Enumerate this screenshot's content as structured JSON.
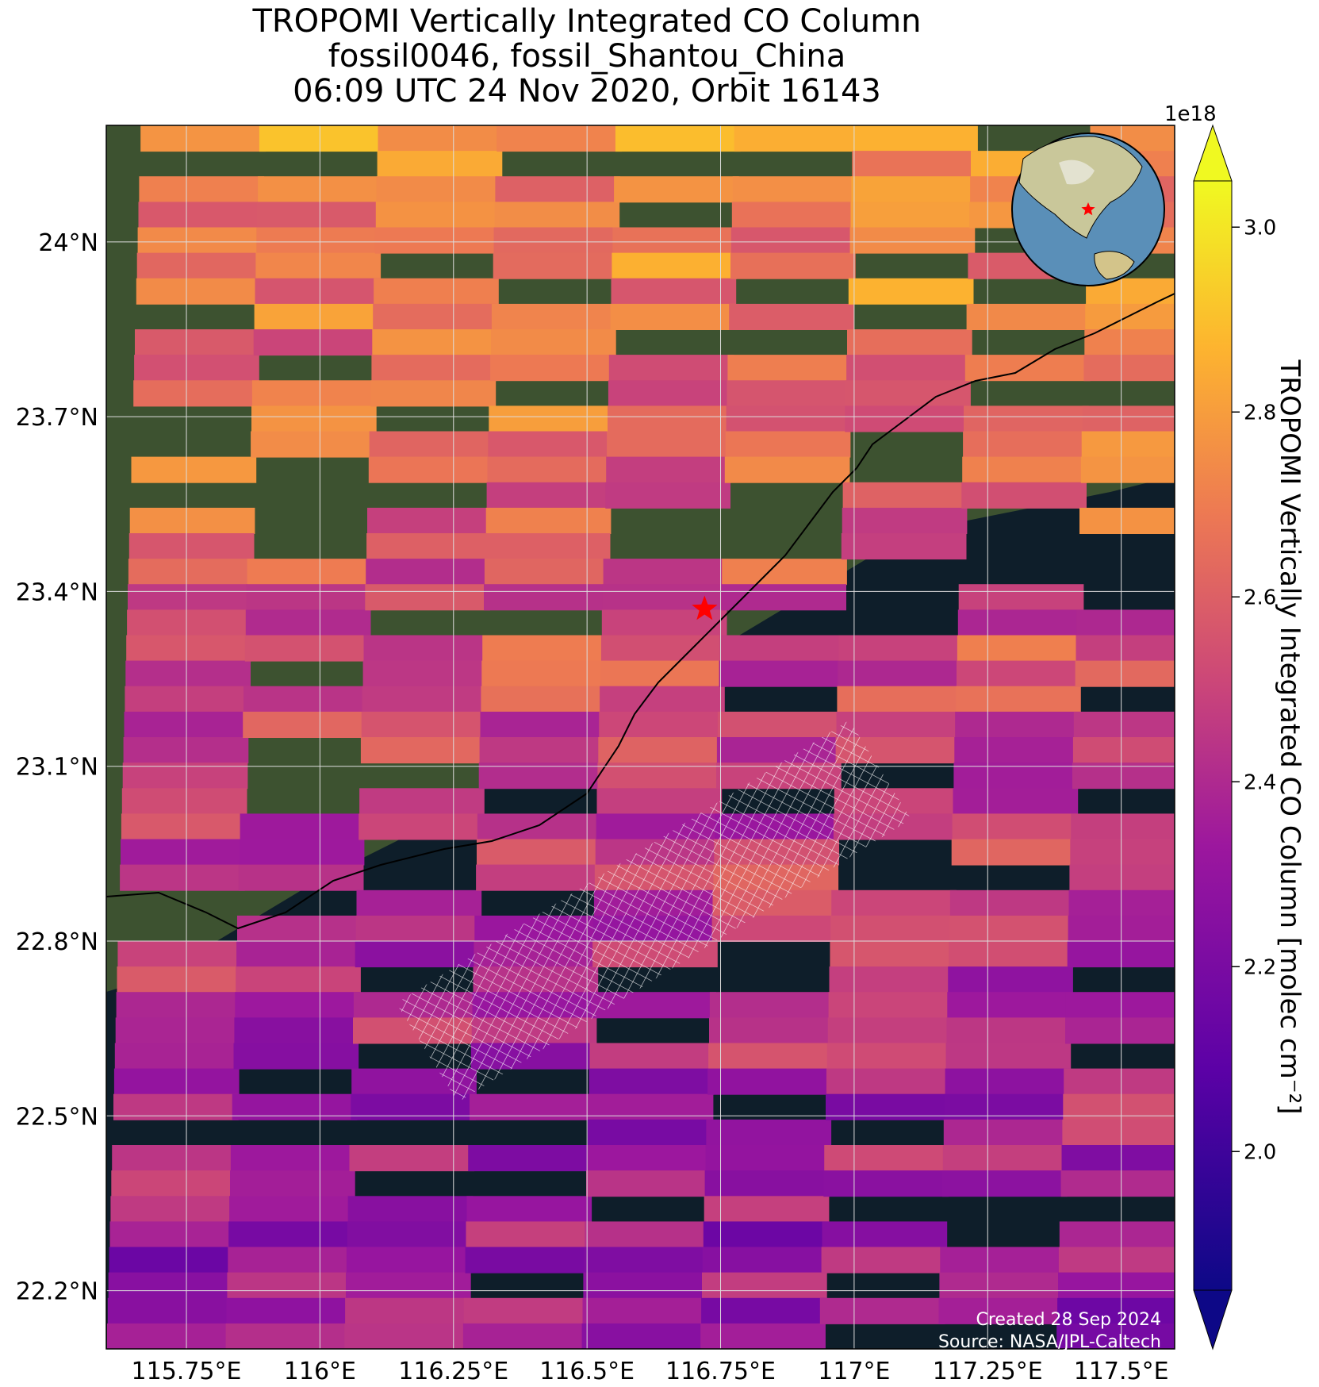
{
  "title": {
    "line1": "TROPOMI Vertically Integrated CO Column",
    "line2": "fossil0046, fossil_Shantou_China",
    "line3": "06:09 UTC 24 Nov 2020, Orbit 16143"
  },
  "map": {
    "lon_range": [
      115.6,
      117.6
    ],
    "lat_range": [
      22.1,
      24.2
    ],
    "lon_ticks": [
      115.75,
      116.0,
      116.25,
      116.5,
      116.75,
      117.0,
      117.25,
      117.5
    ],
    "lon_tick_labels": [
      "115.75°E",
      "116°E",
      "116.25°E",
      "116.5°E",
      "116.75°E",
      "117°E",
      "117.25°E",
      "117.5°E"
    ],
    "lat_ticks": [
      22.2,
      22.5,
      22.8,
      23.1,
      23.4,
      23.7,
      24.0
    ],
    "lat_tick_labels": [
      "22.2°N",
      "22.5°N",
      "22.8°N",
      "23.1°N",
      "23.4°N",
      "23.7°N",
      "24°N"
    ],
    "grid": true,
    "target_marker": {
      "lon": 116.72,
      "lat": 23.37,
      "symbol": "star",
      "color": "#ff0000"
    },
    "inset_globe": {
      "position": "top-right",
      "marker": "star"
    }
  },
  "colorbar": {
    "colormap": "plasma",
    "vmin": 1.85,
    "vmax": 3.05,
    "ticks": [
      2.0,
      2.2,
      2.4,
      2.6,
      2.8,
      3.0
    ],
    "tick_labels": [
      "2.0",
      "2.2",
      "2.4",
      "2.6",
      "2.8",
      "3.0"
    ],
    "multiplier": "1e18",
    "label": "TROPOMI Vertically Integrated CO Column [molec cm⁻²]",
    "extend": "both"
  },
  "credits": {
    "created": "Created 28 Sep 2024",
    "source": "Source: NASA/JPL-Caltech"
  },
  "colors": {
    "ocean": "#0e1e2a",
    "land": "#3d5230",
    "grid": "#dddddd",
    "marker": "#ff0000"
  }
}
